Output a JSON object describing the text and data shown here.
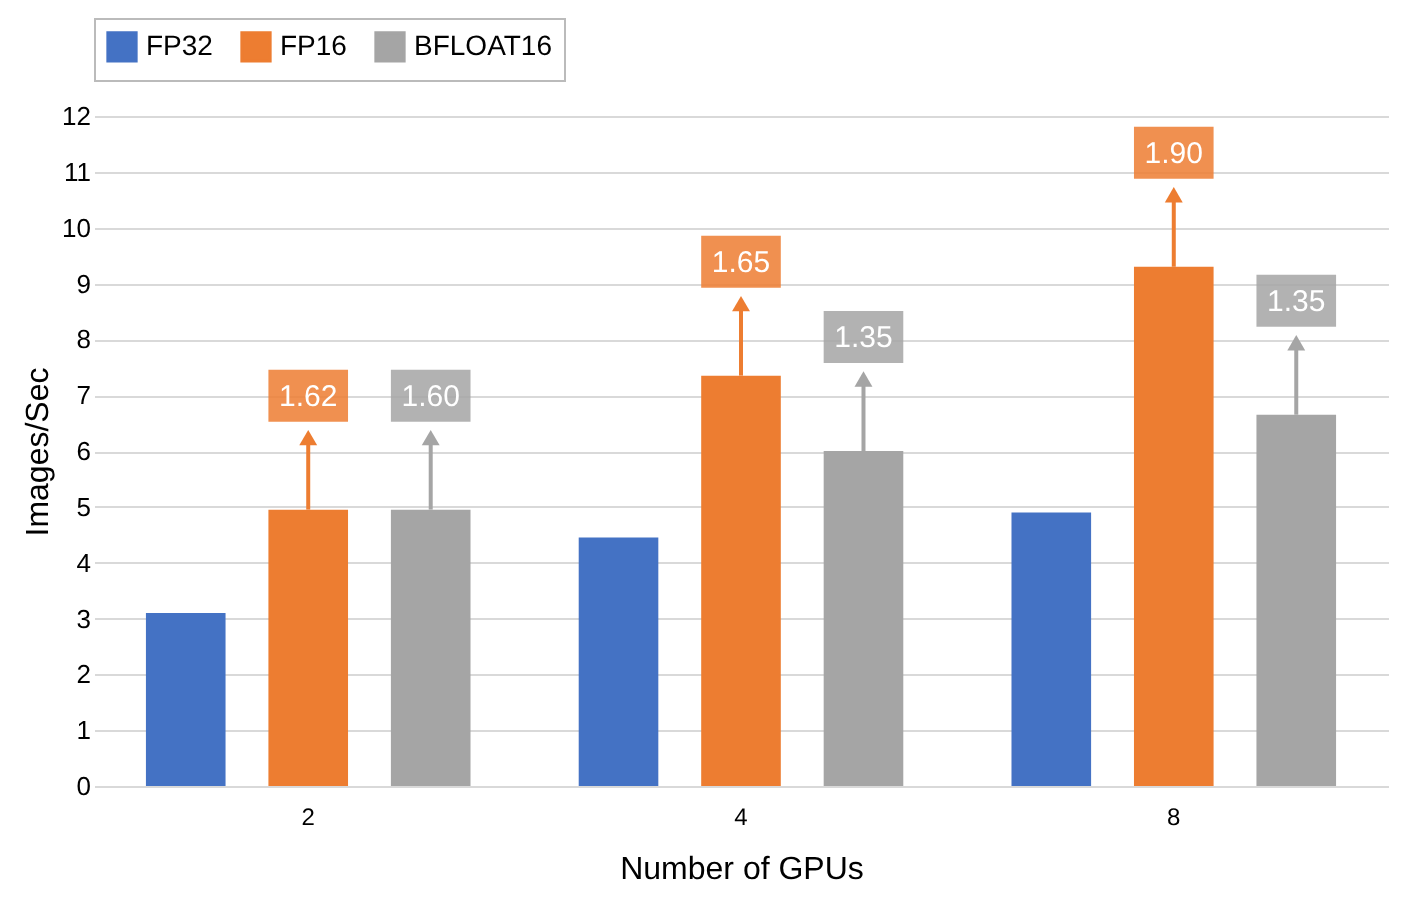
{
  "chart_data": {
    "type": "bar",
    "xlabel": "Number of GPUs",
    "ylabel": "Images/Sec",
    "categories": [
      "2",
      "4",
      "8"
    ],
    "series": [
      {
        "name": "FP32",
        "color": "#4472c4",
        "values": [
          3.1,
          4.45,
          4.9
        ]
      },
      {
        "name": "FP16",
        "color": "#ed7d31",
        "values": [
          4.95,
          7.35,
          9.3
        ]
      },
      {
        "name": "BFLOAT16",
        "color": "#a5a5a5",
        "values": [
          4.95,
          6.0,
          6.65
        ]
      }
    ],
    "annotations": [
      {
        "text": "1.62",
        "x": "2",
        "y": 4.95
      },
      "1.60",
      {
        "text": "1.65",
        "x": "4",
        "y": 7.35
      },
      "1.35",
      {
        "text": "1.90",
        "x": "8",
        "y": 9.3
      },
      "1.35"
    ],
    "ylim": [
      0,
      12
    ],
    "yticks": [
      0,
      1,
      2,
      3,
      4,
      5,
      6,
      7,
      8,
      9,
      10,
      11,
      12
    ],
    "grid": "y",
    "legend": "top"
  }
}
